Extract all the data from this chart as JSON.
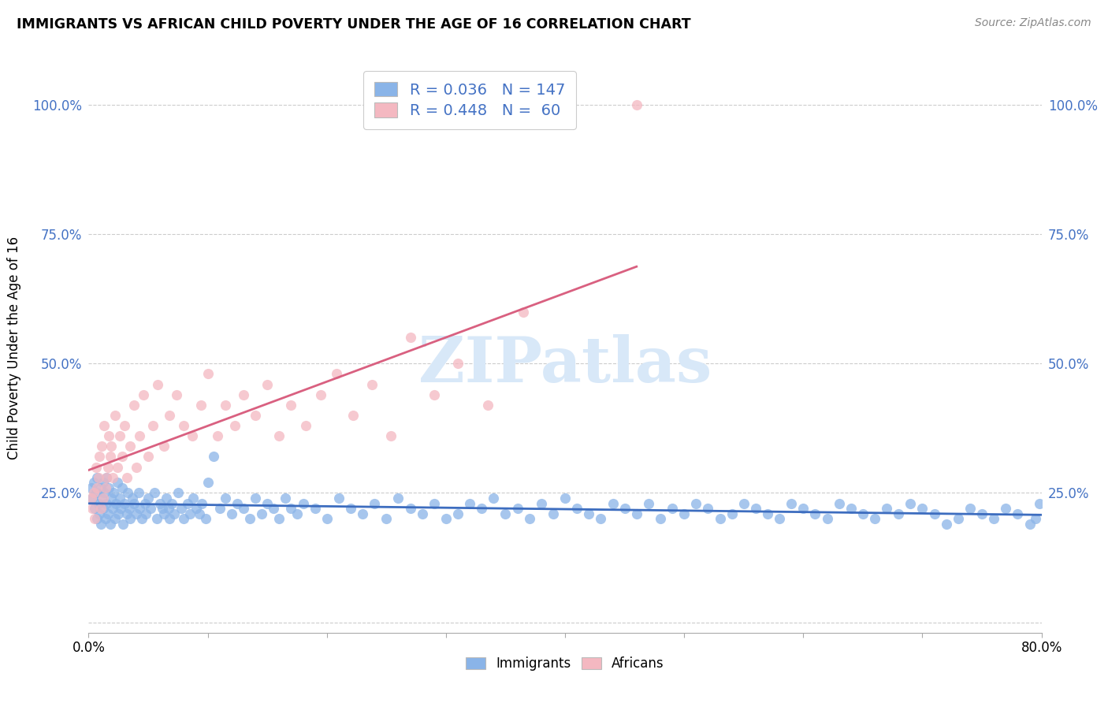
{
  "title": "IMMIGRANTS VS AFRICAN CHILD POVERTY UNDER THE AGE OF 16 CORRELATION CHART",
  "source": "Source: ZipAtlas.com",
  "ylabel": "Child Poverty Under the Age of 16",
  "xlim": [
    0.0,
    0.8
  ],
  "ylim": [
    -0.02,
    1.08
  ],
  "yticks": [
    0.0,
    0.25,
    0.5,
    0.75,
    1.0
  ],
  "ytick_labels_left": [
    "",
    "25.0%",
    "50.0%",
    "75.0%",
    "100.0%"
  ],
  "ytick_labels_right": [
    "",
    "25.0%",
    "50.0%",
    "75.0%",
    "100.0%"
  ],
  "xtick_labels": [
    "0.0%",
    "",
    "",
    "",
    "",
    "",
    "",
    "",
    "80.0%"
  ],
  "legend_R1": "0.036",
  "legend_N1": "147",
  "legend_R2": "0.448",
  "legend_N2": "60",
  "blue_color": "#8ab4e8",
  "pink_color": "#f4b8c1",
  "blue_line_color": "#3d6dbf",
  "pink_line_color": "#d96080",
  "legend_text_color": "#4472c4",
  "watermark": "ZIPatlas",
  "watermark_color": "#d8e8f8",
  "background_color": "#ffffff",
  "immigrants_x": [
    0.002,
    0.003,
    0.004,
    0.005,
    0.006,
    0.007,
    0.007,
    0.008,
    0.009,
    0.01,
    0.01,
    0.011,
    0.012,
    0.012,
    0.013,
    0.014,
    0.015,
    0.015,
    0.016,
    0.017,
    0.018,
    0.019,
    0.02,
    0.021,
    0.022,
    0.023,
    0.024,
    0.025,
    0.026,
    0.027,
    0.028,
    0.029,
    0.03,
    0.032,
    0.033,
    0.034,
    0.035,
    0.037,
    0.038,
    0.04,
    0.042,
    0.043,
    0.045,
    0.047,
    0.048,
    0.05,
    0.052,
    0.055,
    0.057,
    0.06,
    0.062,
    0.063,
    0.065,
    0.067,
    0.068,
    0.07,
    0.072,
    0.075,
    0.078,
    0.08,
    0.083,
    0.085,
    0.088,
    0.09,
    0.093,
    0.095,
    0.098,
    0.1,
    0.105,
    0.11,
    0.115,
    0.12,
    0.125,
    0.13,
    0.135,
    0.14,
    0.145,
    0.15,
    0.155,
    0.16,
    0.165,
    0.17,
    0.175,
    0.18,
    0.19,
    0.2,
    0.21,
    0.22,
    0.23,
    0.24,
    0.25,
    0.26,
    0.27,
    0.28,
    0.29,
    0.3,
    0.31,
    0.32,
    0.33,
    0.34,
    0.35,
    0.36,
    0.37,
    0.38,
    0.39,
    0.4,
    0.41,
    0.42,
    0.43,
    0.44,
    0.45,
    0.46,
    0.47,
    0.48,
    0.49,
    0.5,
    0.51,
    0.52,
    0.53,
    0.54,
    0.55,
    0.56,
    0.57,
    0.58,
    0.59,
    0.6,
    0.61,
    0.62,
    0.63,
    0.64,
    0.65,
    0.66,
    0.67,
    0.68,
    0.69,
    0.7,
    0.71,
    0.72,
    0.73,
    0.74,
    0.75,
    0.76,
    0.77,
    0.78,
    0.79,
    0.795,
    0.798
  ],
  "immigrants_y": [
    0.26,
    0.24,
    0.27,
    0.22,
    0.25,
    0.28,
    0.2,
    0.23,
    0.21,
    0.26,
    0.19,
    0.24,
    0.27,
    0.22,
    0.25,
    0.2,
    0.23,
    0.28,
    0.21,
    0.26,
    0.19,
    0.24,
    0.22,
    0.25,
    0.2,
    0.23,
    0.27,
    0.21,
    0.24,
    0.22,
    0.26,
    0.19,
    0.23,
    0.21,
    0.25,
    0.22,
    0.2,
    0.24,
    0.23,
    0.21,
    0.25,
    0.22,
    0.2,
    0.23,
    0.21,
    0.24,
    0.22,
    0.25,
    0.2,
    0.23,
    0.22,
    0.21,
    0.24,
    0.22,
    0.2,
    0.23,
    0.21,
    0.25,
    0.22,
    0.2,
    0.23,
    0.21,
    0.24,
    0.22,
    0.21,
    0.23,
    0.2,
    0.27,
    0.32,
    0.22,
    0.24,
    0.21,
    0.23,
    0.22,
    0.2,
    0.24,
    0.21,
    0.23,
    0.22,
    0.2,
    0.24,
    0.22,
    0.21,
    0.23,
    0.22,
    0.2,
    0.24,
    0.22,
    0.21,
    0.23,
    0.2,
    0.24,
    0.22,
    0.21,
    0.23,
    0.2,
    0.21,
    0.23,
    0.22,
    0.24,
    0.21,
    0.22,
    0.2,
    0.23,
    0.21,
    0.24,
    0.22,
    0.21,
    0.2,
    0.23,
    0.22,
    0.21,
    0.23,
    0.2,
    0.22,
    0.21,
    0.23,
    0.22,
    0.2,
    0.21,
    0.23,
    0.22,
    0.21,
    0.2,
    0.23,
    0.22,
    0.21,
    0.2,
    0.23,
    0.22,
    0.21,
    0.2,
    0.22,
    0.21,
    0.23,
    0.22,
    0.21,
    0.19,
    0.2,
    0.22,
    0.21,
    0.2,
    0.22,
    0.21,
    0.19,
    0.2,
    0.23
  ],
  "africans_x": [
    0.002,
    0.003,
    0.004,
    0.005,
    0.006,
    0.007,
    0.008,
    0.009,
    0.01,
    0.011,
    0.012,
    0.013,
    0.014,
    0.015,
    0.016,
    0.017,
    0.018,
    0.019,
    0.02,
    0.022,
    0.024,
    0.026,
    0.028,
    0.03,
    0.032,
    0.035,
    0.038,
    0.04,
    0.043,
    0.046,
    0.05,
    0.054,
    0.058,
    0.063,
    0.068,
    0.074,
    0.08,
    0.087,
    0.094,
    0.1,
    0.108,
    0.115,
    0.123,
    0.13,
    0.14,
    0.15,
    0.16,
    0.17,
    0.182,
    0.195,
    0.208,
    0.222,
    0.238,
    0.254,
    0.27,
    0.29,
    0.31,
    0.335,
    0.365,
    0.46
  ],
  "africans_y": [
    0.24,
    0.22,
    0.25,
    0.2,
    0.3,
    0.26,
    0.28,
    0.32,
    0.22,
    0.34,
    0.24,
    0.38,
    0.26,
    0.28,
    0.3,
    0.36,
    0.32,
    0.34,
    0.28,
    0.4,
    0.3,
    0.36,
    0.32,
    0.38,
    0.28,
    0.34,
    0.42,
    0.3,
    0.36,
    0.44,
    0.32,
    0.38,
    0.46,
    0.34,
    0.4,
    0.44,
    0.38,
    0.36,
    0.42,
    0.48,
    0.36,
    0.42,
    0.38,
    0.44,
    0.4,
    0.46,
    0.36,
    0.42,
    0.38,
    0.44,
    0.48,
    0.4,
    0.46,
    0.36,
    0.55,
    0.44,
    0.5,
    0.42,
    0.6,
    1.0
  ]
}
